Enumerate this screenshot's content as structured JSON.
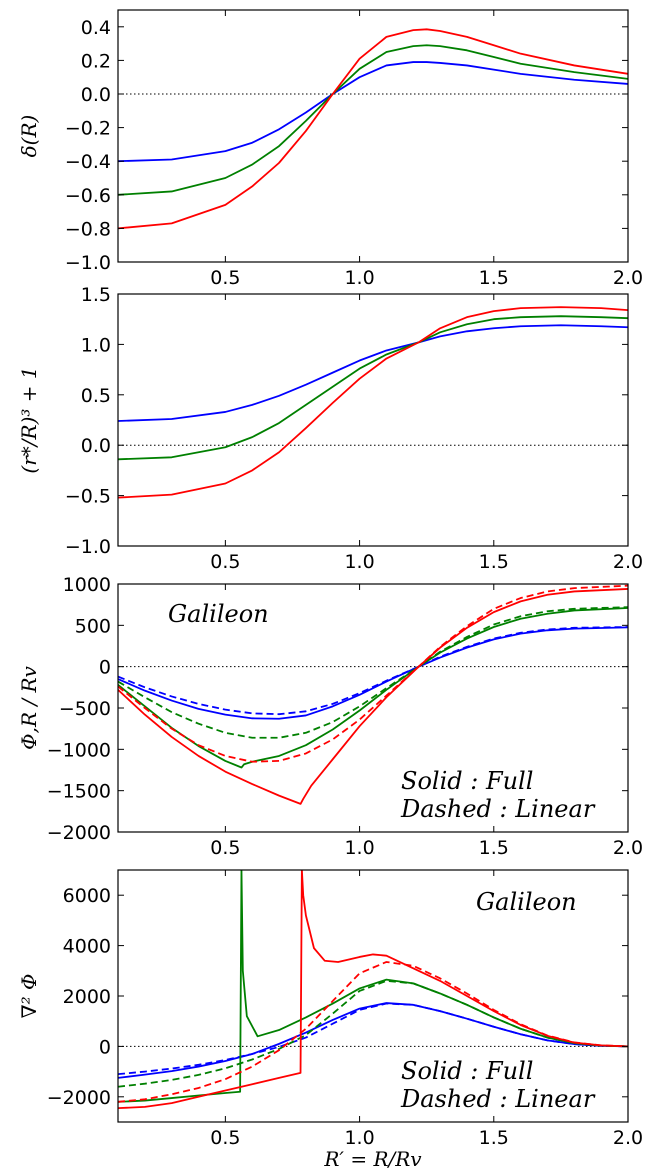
{
  "colors": {
    "blue": "#0000ff",
    "green": "#008000",
    "red": "#ff0000"
  },
  "chart_data": [
    {
      "type": "line",
      "ylabel": "δ(R)",
      "xlabel": "",
      "xlim": [
        0.1,
        2.0
      ],
      "ylim": [
        -1.0,
        0.5
      ],
      "xticks": [
        0.5,
        1.0,
        1.5,
        2.0
      ],
      "yticks": [
        -1.0,
        -0.8,
        -0.6,
        -0.4,
        -0.2,
        0.0,
        0.2,
        0.4
      ],
      "ytick_labels": [
        "−1.0",
        "−0.8",
        "−0.6",
        "−0.4",
        "−0.2",
        "0.0",
        "0.2",
        "0.4"
      ],
      "xtick_labels": [
        "0.5",
        "1.0",
        "1.5",
        "2.0"
      ],
      "zero_line": true,
      "annotations": [],
      "series": [
        {
          "color": "blue",
          "style": "solid",
          "x": [
            0.1,
            0.3,
            0.5,
            0.6,
            0.7,
            0.8,
            0.9,
            1.0,
            1.1,
            1.2,
            1.25,
            1.3,
            1.4,
            1.5,
            1.6,
            1.8,
            2.0
          ],
          "y": [
            -0.4,
            -0.39,
            -0.34,
            -0.29,
            -0.21,
            -0.11,
            0.0,
            0.1,
            0.17,
            0.19,
            0.19,
            0.185,
            0.17,
            0.145,
            0.12,
            0.085,
            0.06
          ]
        },
        {
          "color": "green",
          "style": "solid",
          "x": [
            0.1,
            0.3,
            0.5,
            0.6,
            0.7,
            0.8,
            0.9,
            1.0,
            1.1,
            1.2,
            1.25,
            1.3,
            1.4,
            1.5,
            1.6,
            1.8,
            2.0
          ],
          "y": [
            -0.6,
            -0.58,
            -0.5,
            -0.42,
            -0.31,
            -0.16,
            0.0,
            0.15,
            0.25,
            0.285,
            0.29,
            0.285,
            0.26,
            0.22,
            0.18,
            0.13,
            0.09
          ]
        },
        {
          "color": "red",
          "style": "solid",
          "x": [
            0.1,
            0.3,
            0.5,
            0.6,
            0.7,
            0.8,
            0.9,
            1.0,
            1.1,
            1.2,
            1.25,
            1.3,
            1.4,
            1.5,
            1.6,
            1.8,
            2.0
          ],
          "y": [
            -0.8,
            -0.77,
            -0.66,
            -0.55,
            -0.41,
            -0.22,
            0.0,
            0.21,
            0.34,
            0.38,
            0.385,
            0.375,
            0.34,
            0.29,
            0.24,
            0.17,
            0.12
          ]
        }
      ]
    },
    {
      "type": "line",
      "ylabel": "(r*/R)³ + 1",
      "xlabel": "",
      "xlim": [
        0.1,
        2.0
      ],
      "ylim": [
        -1.0,
        1.5
      ],
      "xticks": [
        0.5,
        1.0,
        1.5,
        2.0
      ],
      "yticks": [
        -1.0,
        -0.5,
        0.0,
        0.5,
        1.0,
        1.5
      ],
      "ytick_labels": [
        "−1.0",
        "−0.5",
        "0.0",
        "0.5",
        "1.0",
        "1.5"
      ],
      "xtick_labels": [
        "0.5",
        "1.0",
        "1.5",
        "2.0"
      ],
      "zero_line": true,
      "annotations": [],
      "series": [
        {
          "color": "blue",
          "style": "solid",
          "x": [
            0.1,
            0.3,
            0.5,
            0.6,
            0.7,
            0.8,
            0.9,
            1.0,
            1.1,
            1.22,
            1.3,
            1.4,
            1.5,
            1.6,
            1.75,
            1.9,
            2.0
          ],
          "y": [
            0.24,
            0.26,
            0.33,
            0.4,
            0.49,
            0.6,
            0.72,
            0.84,
            0.94,
            1.02,
            1.08,
            1.13,
            1.16,
            1.18,
            1.19,
            1.18,
            1.17
          ]
        },
        {
          "color": "green",
          "style": "solid",
          "x": [
            0.1,
            0.3,
            0.5,
            0.6,
            0.7,
            0.8,
            0.9,
            1.0,
            1.1,
            1.22,
            1.3,
            1.4,
            1.5,
            1.6,
            1.75,
            1.9,
            2.0
          ],
          "y": [
            -0.14,
            -0.12,
            -0.02,
            0.08,
            0.22,
            0.4,
            0.58,
            0.76,
            0.9,
            1.02,
            1.12,
            1.2,
            1.25,
            1.27,
            1.28,
            1.27,
            1.26
          ]
        },
        {
          "color": "red",
          "style": "solid",
          "x": [
            0.1,
            0.3,
            0.5,
            0.6,
            0.7,
            0.8,
            0.9,
            1.0,
            1.1,
            1.22,
            1.3,
            1.4,
            1.5,
            1.6,
            1.75,
            1.9,
            2.0
          ],
          "y": [
            -0.52,
            -0.49,
            -0.38,
            -0.25,
            -0.07,
            0.17,
            0.42,
            0.66,
            0.86,
            1.02,
            1.16,
            1.27,
            1.33,
            1.36,
            1.37,
            1.36,
            1.34
          ]
        }
      ]
    },
    {
      "type": "line",
      "ylabel": "Φ,R / Rv",
      "xlabel": "",
      "xlim": [
        0.1,
        2.0
      ],
      "ylim": [
        -2000,
        1000
      ],
      "xticks": [
        0.5,
        1.0,
        1.5,
        2.0
      ],
      "yticks": [
        -2000,
        -1500,
        -1000,
        -500,
        0,
        500,
        1000
      ],
      "ytick_labels": [
        "−2000",
        "−1500",
        "−1000",
        "−500",
        "0",
        "500",
        "1000"
      ],
      "xtick_labels": [
        "0.5",
        "1.0",
        "1.5",
        "2.0"
      ],
      "zero_line": true,
      "annotations": [
        {
          "text": "Galileon",
          "pos": "top-left"
        },
        {
          "text": "Solid      : Full",
          "pos": "bottom-right-1"
        },
        {
          "text": "Dashed : Linear",
          "pos": "bottom-right-2"
        }
      ],
      "series": [
        {
          "color": "blue",
          "style": "dashed",
          "x": [
            0.1,
            0.2,
            0.3,
            0.4,
            0.5,
            0.6,
            0.7,
            0.8,
            0.9,
            1.0,
            1.1,
            1.22,
            1.3,
            1.4,
            1.5,
            1.6,
            1.7,
            1.8,
            2.0
          ],
          "y": [
            -120,
            -250,
            -360,
            -450,
            -520,
            -565,
            -575,
            -540,
            -450,
            -320,
            -170,
            0,
            120,
            240,
            340,
            410,
            450,
            470,
            480
          ]
        },
        {
          "color": "blue",
          "style": "solid",
          "x": [
            0.1,
            0.2,
            0.3,
            0.4,
            0.5,
            0.6,
            0.7,
            0.8,
            0.9,
            1.0,
            1.1,
            1.22,
            1.3,
            1.4,
            1.5,
            1.6,
            1.7,
            1.8,
            2.0
          ],
          "y": [
            -150,
            -290,
            -410,
            -510,
            -580,
            -625,
            -630,
            -590,
            -480,
            -340,
            -180,
            0,
            110,
            230,
            330,
            400,
            440,
            460,
            475
          ]
        },
        {
          "color": "green",
          "style": "dashed",
          "x": [
            0.1,
            0.2,
            0.3,
            0.4,
            0.5,
            0.6,
            0.7,
            0.8,
            0.9,
            1.0,
            1.1,
            1.22,
            1.3,
            1.4,
            1.5,
            1.6,
            1.7,
            1.8,
            2.0
          ],
          "y": [
            -180,
            -370,
            -550,
            -690,
            -800,
            -860,
            -860,
            -800,
            -670,
            -480,
            -260,
            0,
            180,
            360,
            510,
            610,
            670,
            700,
            720
          ]
        },
        {
          "color": "green",
          "style": "solid",
          "x": [
            0.1,
            0.2,
            0.3,
            0.4,
            0.5,
            0.56,
            0.57,
            0.6,
            0.7,
            0.8,
            0.9,
            1.0,
            1.1,
            1.22,
            1.3,
            1.4,
            1.5,
            1.6,
            1.7,
            1.8,
            2.0
          ],
          "y": [
            -220,
            -480,
            -740,
            -960,
            -1140,
            -1220,
            -1180,
            -1150,
            -1080,
            -950,
            -760,
            -530,
            -280,
            0,
            170,
            340,
            480,
            580,
            640,
            680,
            710
          ]
        },
        {
          "color": "red",
          "style": "dashed",
          "x": [
            0.1,
            0.2,
            0.3,
            0.4,
            0.5,
            0.6,
            0.7,
            0.8,
            0.9,
            1.0,
            1.1,
            1.22,
            1.3,
            1.4,
            1.5,
            1.6,
            1.7,
            1.8,
            2.0
          ],
          "y": [
            -240,
            -500,
            -750,
            -950,
            -1080,
            -1150,
            -1140,
            -1050,
            -880,
            -640,
            -350,
            0,
            240,
            490,
            700,
            830,
            910,
            950,
            980
          ]
        },
        {
          "color": "red",
          "style": "solid",
          "x": [
            0.1,
            0.2,
            0.3,
            0.4,
            0.5,
            0.6,
            0.7,
            0.78,
            0.79,
            0.82,
            0.9,
            1.0,
            1.1,
            1.22,
            1.3,
            1.4,
            1.5,
            1.6,
            1.7,
            1.8,
            2.0
          ],
          "y": [
            -280,
            -580,
            -850,
            -1080,
            -1270,
            -1420,
            -1560,
            -1660,
            -1600,
            -1440,
            -1120,
            -720,
            -370,
            0,
            230,
            470,
            660,
            790,
            870,
            910,
            940
          ]
        }
      ]
    },
    {
      "type": "line",
      "ylabel": "∇² Φ",
      "xlabel": "R′ = R/Rv",
      "xlim": [
        0.1,
        2.0
      ],
      "ylim": [
        -3000,
        7000
      ],
      "xticks": [
        0.5,
        1.0,
        1.5,
        2.0
      ],
      "yticks": [
        -2000,
        0,
        2000,
        4000,
        6000
      ],
      "ytick_labels": [
        "−2000",
        "0",
        "2000",
        "4000",
        "6000"
      ],
      "xtick_labels": [
        "0.5",
        "1.0",
        "1.5",
        "2.0"
      ],
      "zero_line": true,
      "annotations": [
        {
          "text": "Galileon",
          "pos": "top-right"
        },
        {
          "text": "Solid      : Full",
          "pos": "bottom-right-1"
        },
        {
          "text": "Dashed : Linear",
          "pos": "bottom-right-2"
        }
      ],
      "series": [
        {
          "color": "blue",
          "style": "dashed",
          "x": [
            0.1,
            0.2,
            0.3,
            0.4,
            0.5,
            0.6,
            0.7,
            0.8,
            0.9,
            1.0,
            1.1,
            1.2,
            1.3,
            1.4,
            1.5,
            1.6,
            1.7,
            1.8,
            1.9,
            2.0
          ],
          "y": [
            -1100,
            -1000,
            -880,
            -730,
            -540,
            -300,
            -20,
            350,
            900,
            1450,
            1700,
            1650,
            1400,
            1100,
            780,
            480,
            240,
            90,
            20,
            0
          ]
        },
        {
          "color": "blue",
          "style": "solid",
          "x": [
            0.1,
            0.2,
            0.3,
            0.4,
            0.5,
            0.6,
            0.7,
            0.8,
            0.9,
            1.0,
            1.1,
            1.2,
            1.3,
            1.4,
            1.5,
            1.6,
            1.7,
            1.8,
            1.9,
            2.0
          ],
          "y": [
            -1250,
            -1120,
            -980,
            -800,
            -580,
            -300,
            100,
            550,
            1050,
            1500,
            1720,
            1650,
            1400,
            1100,
            780,
            480,
            240,
            90,
            20,
            0
          ]
        },
        {
          "color": "green",
          "style": "dashed",
          "x": [
            0.1,
            0.2,
            0.3,
            0.4,
            0.5,
            0.6,
            0.7,
            0.8,
            0.9,
            1.0,
            1.1,
            1.2,
            1.3,
            1.4,
            1.5,
            1.6,
            1.7,
            1.8,
            1.9,
            2.0
          ],
          "y": [
            -1600,
            -1480,
            -1330,
            -1130,
            -870,
            -520,
            -100,
            450,
            1300,
            2200,
            2600,
            2500,
            2100,
            1650,
            1150,
            700,
            350,
            130,
            30,
            0
          ]
        },
        {
          "color": "green",
          "style": "solid",
          "x": [
            0.1,
            0.2,
            0.3,
            0.4,
            0.5,
            0.555,
            0.56,
            0.565,
            0.58,
            0.62,
            0.7,
            0.8,
            0.9,
            1.0,
            1.1,
            1.2,
            1.3,
            1.4,
            1.5,
            1.6,
            1.7,
            1.8,
            1.9,
            2.0
          ],
          "y": [
            -2200,
            -2150,
            -2050,
            -1950,
            -1850,
            -1800,
            7000,
            3000,
            1200,
            400,
            650,
            1150,
            1700,
            2300,
            2650,
            2500,
            2100,
            1650,
            1150,
            700,
            350,
            130,
            30,
            0
          ]
        },
        {
          "color": "red",
          "style": "dashed",
          "x": [
            0.1,
            0.2,
            0.3,
            0.4,
            0.5,
            0.6,
            0.7,
            0.8,
            0.9,
            1.0,
            1.1,
            1.2,
            1.3,
            1.4,
            1.5,
            1.6,
            1.7,
            1.8,
            1.9,
            2.0
          ],
          "y": [
            -2200,
            -2100,
            -1900,
            -1650,
            -1300,
            -800,
            -150,
            700,
            1800,
            2900,
            3350,
            3200,
            2700,
            2100,
            1450,
            880,
            430,
            160,
            40,
            0
          ]
        },
        {
          "color": "red",
          "style": "solid",
          "x": [
            0.1,
            0.2,
            0.3,
            0.4,
            0.5,
            0.6,
            0.7,
            0.78,
            0.785,
            0.79,
            0.8,
            0.83,
            0.87,
            0.92,
            1.0,
            1.05,
            1.1,
            1.2,
            1.3,
            1.4,
            1.5,
            1.6,
            1.7,
            1.8,
            1.9,
            2.0
          ],
          "y": [
            -2450,
            -2400,
            -2250,
            -2000,
            -1750,
            -1500,
            -1250,
            -1050,
            7000,
            6000,
            5200,
            3900,
            3400,
            3350,
            3550,
            3650,
            3600,
            3100,
            2600,
            2000,
            1400,
            850,
            420,
            150,
            40,
            0
          ]
        }
      ]
    }
  ]
}
